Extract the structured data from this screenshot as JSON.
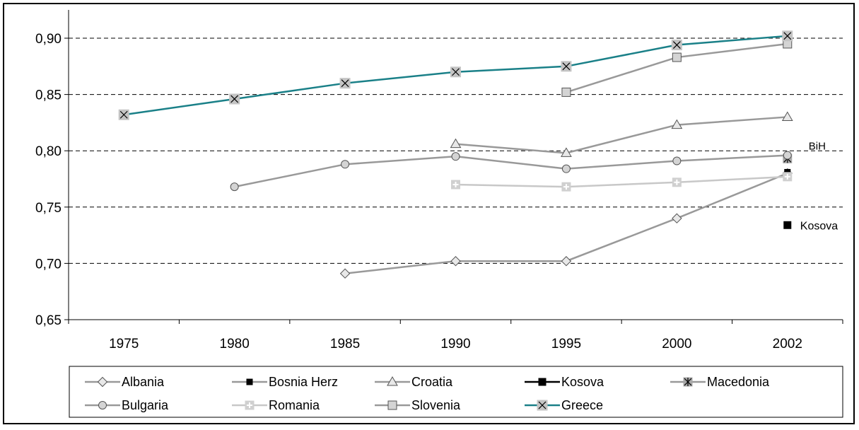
{
  "chart_data": {
    "type": "line",
    "categories": [
      "1975",
      "1980",
      "1985",
      "1990",
      "1995",
      "2000",
      "2002"
    ],
    "ylim": [
      0.65,
      0.9
    ],
    "yticks": [
      "0,65",
      "0,70",
      "0,75",
      "0,80",
      "0,85",
      "0,90"
    ],
    "grid": "horizontal dashed",
    "legend_position": "bottom",
    "colors": {
      "gray": "#999999",
      "teal": "#1a8088",
      "black": "#000000",
      "light": "#c8c8c8"
    },
    "series": [
      {
        "name": "Albania",
        "values": [
          null,
          null,
          0.691,
          0.702,
          0.702,
          0.74,
          0.78
        ],
        "color": "#999999",
        "marker": "diamond"
      },
      {
        "name": "Bosnia Herz",
        "values": [
          null,
          null,
          null,
          null,
          null,
          null,
          0.781
        ],
        "color": "#999999",
        "marker": "small-square"
      },
      {
        "name": "Croatia",
        "values": [
          null,
          null,
          null,
          0.806,
          0.798,
          0.823,
          0.83
        ],
        "color": "#999999",
        "marker": "triangle"
      },
      {
        "name": "Kosova",
        "values": [
          null,
          null,
          null,
          null,
          null,
          null,
          0.734
        ],
        "color": "#000000",
        "marker": "black-square"
      },
      {
        "name": "Macedonia",
        "values": [
          null,
          null,
          null,
          null,
          null,
          null,
          0.793
        ],
        "color": "#999999",
        "marker": "star"
      },
      {
        "name": "Bulgaria",
        "values": [
          null,
          0.768,
          0.788,
          0.795,
          0.784,
          0.791,
          0.796
        ],
        "color": "#999999",
        "marker": "circle"
      },
      {
        "name": "Romania",
        "values": [
          null,
          null,
          null,
          0.77,
          0.768,
          0.772,
          0.777
        ],
        "color": "#c8c8c8",
        "marker": "plus-square"
      },
      {
        "name": "Slovenia",
        "values": [
          null,
          null,
          null,
          null,
          0.852,
          0.883,
          0.895
        ],
        "color": "#999999",
        "marker": "square"
      },
      {
        "name": "Greece",
        "values": [
          0.832,
          0.846,
          0.86,
          0.87,
          0.875,
          0.894,
          0.902
        ],
        "color": "#1a8088",
        "marker": "x-square"
      }
    ],
    "annotations": [
      {
        "text": "BiH",
        "series": "Bosnia Herz"
      },
      {
        "text": "Kosova",
        "series": "Kosova"
      }
    ]
  }
}
